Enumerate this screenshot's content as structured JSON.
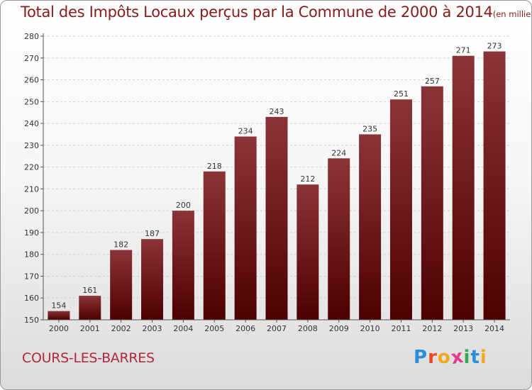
{
  "title": "Total des Impôts Locaux perçus par la Commune de 2000 à 2014",
  "title_unit": "(en milliers d'€)",
  "commune": "COURS-LES-BARRES",
  "logo": {
    "letters": [
      "P",
      "r",
      "o",
      "x",
      "i",
      "t",
      "i"
    ],
    "colors": [
      "#2a8fd8",
      "#e84a2a",
      "#f2a81d",
      "#e83a8a",
      "#34a853",
      "#2a8fd8",
      "#f2a81d"
    ]
  },
  "colors": {
    "bar_top": "#8b3438",
    "bar_bottom": "#4d0000",
    "title": "#8b1a1a",
    "commune": "#b3273a"
  },
  "chart_data": {
    "type": "bar",
    "title": "Total des Impôts Locaux perçus par la Commune de 2000 à 2014",
    "categories": [
      "2000",
      "2001",
      "2002",
      "2003",
      "2004",
      "2005",
      "2006",
      "2007",
      "2008",
      "2009",
      "2010",
      "2011",
      "2012",
      "2013",
      "2014"
    ],
    "values": [
      154,
      161,
      182,
      187,
      200,
      218,
      234,
      243,
      212,
      224,
      235,
      251,
      257,
      271,
      273
    ],
    "ylim": [
      150,
      280
    ],
    "yticks": [
      150,
      160,
      170,
      180,
      190,
      200,
      210,
      220,
      230,
      240,
      250,
      260,
      270,
      280
    ],
    "grid": true,
    "xlabel": "",
    "ylabel": ""
  }
}
